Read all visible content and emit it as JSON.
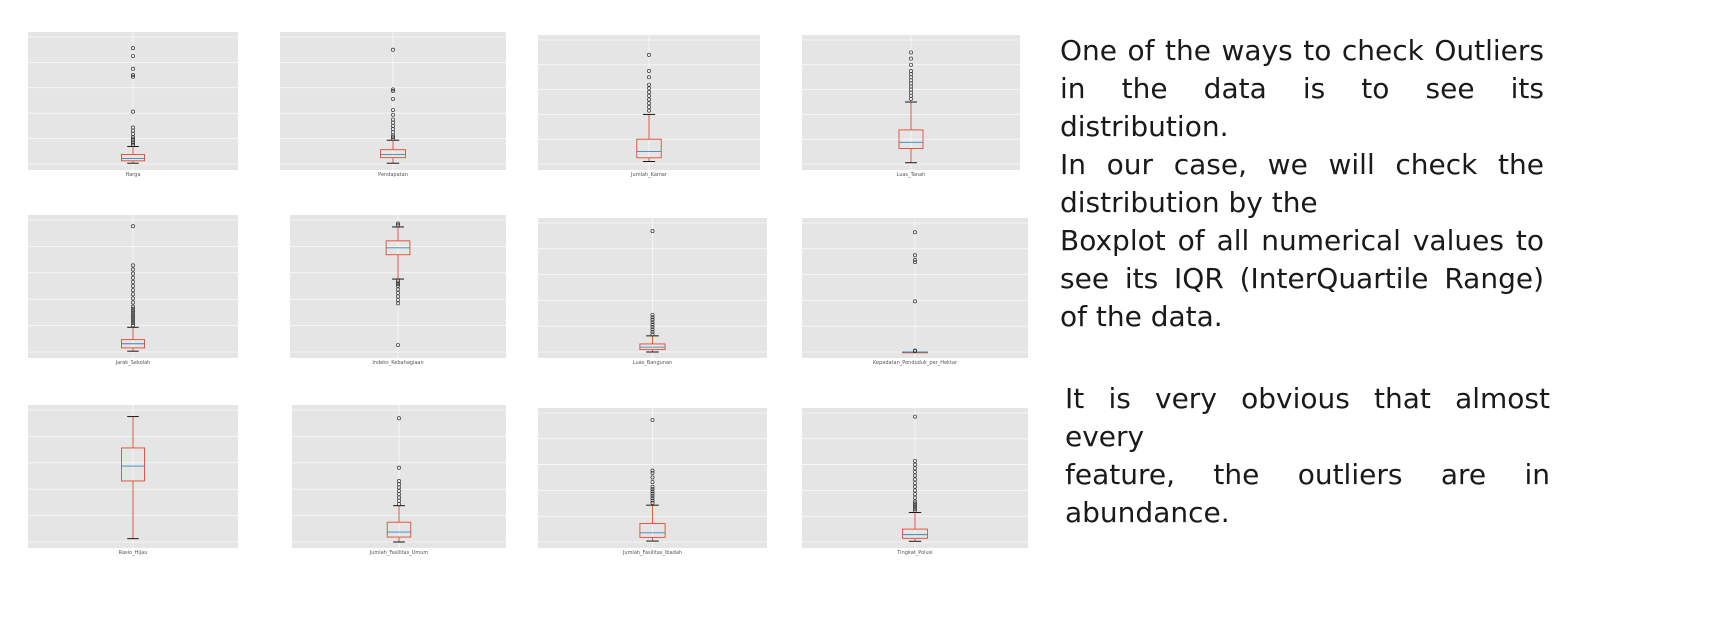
{
  "text": {
    "para1": [
      "One of the ways to check Outliers",
      "in the data is to see its distribution.",
      "In our case, we will check the",
      "distribution by the",
      "Boxplot of all numerical values to",
      "see its IQR (InterQuartile Range)",
      "of the data."
    ],
    "para2": [
      "It is very obvious that almost every",
      "feature, the outliers are in",
      "abundance."
    ]
  },
  "colors": {
    "panel_bg": "#e5e5e5",
    "grid": "#ffffff",
    "box": "#e24a33",
    "median": "#348abd",
    "flier": "#333333"
  },
  "chart_data": [
    {
      "type": "box",
      "xlabel": "Harga",
      "ylim": [
        0,
        80
      ],
      "stats": {
        "whislo": 0.5,
        "q1": 2,
        "med": 3.5,
        "q3": 6,
        "whishi": 11
      },
      "fliers": [
        12,
        13,
        14,
        15,
        16,
        17,
        19,
        21,
        23,
        33,
        55,
        56,
        60,
        68,
        73
      ]
    },
    {
      "type": "box",
      "xlabel": "Pendapatan",
      "ylim": [
        0,
        80
      ],
      "stats": {
        "whislo": 0.5,
        "q1": 4,
        "med": 6,
        "q3": 9,
        "whishi": 15
      },
      "fliers": [
        16,
        17,
        18,
        20,
        22,
        24,
        26,
        28,
        31,
        34,
        41,
        46,
        47,
        72
      ]
    },
    {
      "type": "box",
      "xlabel": "Jumlah_Kamar",
      "ylim": [
        0,
        10
      ],
      "stats": {
        "whislo": 0.2,
        "q1": 0.5,
        "med": 1,
        "q3": 2,
        "whishi": 4
      },
      "fliers": [
        4.3,
        4.6,
        4.9,
        5.2,
        5.5,
        5.8,
        6.1,
        6.4,
        7,
        7.5,
        8.8
      ]
    },
    {
      "type": "box",
      "xlabel": "Luas_Tanah",
      "ylim": [
        0,
        20
      ],
      "stats": {
        "whislo": 0.2,
        "q1": 2.5,
        "med": 3.5,
        "q3": 5.5,
        "whishi": 10
      },
      "fliers": [
        10.5,
        11,
        11.5,
        12,
        12.5,
        13,
        13.5,
        14,
        14.5,
        15,
        16,
        17,
        18
      ]
    },
    {
      "type": "box",
      "xlabel": "Jarak_Sekolah",
      "ylim": [
        0,
        3.2
      ],
      "stats": {
        "whislo": 0.02,
        "q1": 0.1,
        "med": 0.2,
        "q3": 0.3,
        "whishi": 0.6
      },
      "fliers": [
        0.65,
        0.7,
        0.75,
        0.8,
        0.85,
        0.9,
        0.95,
        1.0,
        1.05,
        1.1,
        1.2,
        1.3,
        1.4,
        1.5,
        1.6,
        1.7,
        1.8,
        1.9,
        2.0,
        2.1,
        3.05
      ]
    },
    {
      "type": "box",
      "xlabel": "Indeks_Kebahagiaan",
      "ylim": [
        14,
        90
      ],
      "stats": {
        "whislo": 56,
        "q1": 70,
        "med": 74,
        "q3": 78,
        "whishi": 86
      },
      "fliers": [
        18,
        42,
        44,
        46,
        48,
        50,
        52,
        53,
        54,
        55,
        87,
        88
      ]
    },
    {
      "type": "box",
      "xlabel": "Luas_Bangunan",
      "ylim": [
        0,
        16
      ],
      "stats": {
        "whislo": 0,
        "q1": 0.3,
        "med": 0.6,
        "q3": 1.0,
        "whishi": 2
      },
      "fliers": [
        2.2,
        2.5,
        2.8,
        3.1,
        3.4,
        3.7,
        4,
        4.3,
        4.6,
        15
      ]
    },
    {
      "type": "box",
      "xlabel": "Kepadatan_Penduduk_per_Hektar",
      "ylim": [
        0,
        2.8
      ],
      "stats": {
        "whislo": 0,
        "q1": 0,
        "med": 0,
        "q3": 0,
        "whishi": 0
      },
      "fliers": [
        0.02,
        0.03,
        1.1,
        1.95,
        2.0,
        2.1,
        2.6
      ]
    },
    {
      "type": "box",
      "xlabel": "Rasio_Hijau",
      "ylim": [
        0,
        8
      ],
      "stats": {
        "whislo": 0.2,
        "q1": 3.7,
        "med": 4.6,
        "q3": 5.7,
        "whishi": 7.6
      },
      "fliers": []
    },
    {
      "type": "box",
      "xlabel": "Jumlah_Fasilitas_Umum",
      "ylim": [
        0,
        80
      ],
      "stats": {
        "whislo": 0,
        "q1": 3,
        "med": 6,
        "q3": 12,
        "whishi": 22
      },
      "fliers": [
        23,
        25,
        27,
        29,
        31,
        33,
        35,
        37,
        45,
        75
      ]
    },
    {
      "type": "box",
      "xlabel": "Jumlah_Fasilitas_Ibadah",
      "ylim": [
        0,
        2.8
      ],
      "stats": {
        "whislo": 0.02,
        "q1": 0.1,
        "med": 0.2,
        "q3": 0.4,
        "whishi": 0.8
      },
      "fliers": [
        0.85,
        0.9,
        0.95,
        1.0,
        1.05,
        1.1,
        1.15,
        1.2,
        1.3,
        1.4,
        1.5,
        1.55,
        2.65
      ]
    },
    {
      "type": "box",
      "xlabel": "Tingkat_Polusi",
      "ylim": [
        0,
        3.5
      ],
      "stats": {
        "whislo": 0.02,
        "q1": 0.1,
        "med": 0.2,
        "q3": 0.35,
        "whishi": 0.8
      },
      "fliers": [
        0.85,
        0.9,
        0.95,
        1.0,
        1.05,
        1.1,
        1.2,
        1.3,
        1.4,
        1.5,
        1.6,
        1.7,
        1.8,
        1.9,
        2.0,
        2.1,
        2.2,
        3.4
      ]
    }
  ]
}
